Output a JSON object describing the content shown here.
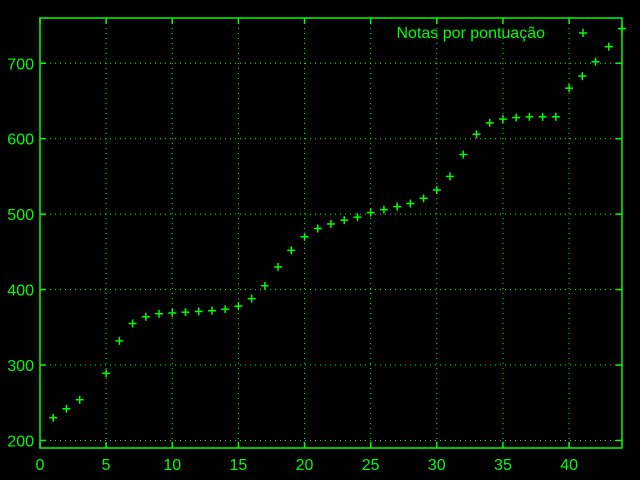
{
  "chart_data": {
    "type": "scatter",
    "title": "",
    "xlabel": "",
    "ylabel": "",
    "xlim": [
      0,
      44
    ],
    "ylim": [
      190,
      760
    ],
    "x_ticks": [
      0,
      5,
      10,
      15,
      20,
      25,
      30,
      35,
      40
    ],
    "y_ticks": [
      200,
      300,
      400,
      500,
      600,
      700
    ],
    "grid": true,
    "legend_position": "top-right",
    "color": "#00ff00",
    "background": "#000000",
    "marker": "plus",
    "series": [
      {
        "name": "Notas por pontuação",
        "points": [
          [
            1,
            230
          ],
          [
            2,
            242
          ],
          [
            3,
            254
          ],
          [
            5,
            289
          ],
          [
            6,
            332
          ],
          [
            7,
            355
          ],
          [
            8,
            364
          ],
          [
            9,
            368
          ],
          [
            10,
            369
          ],
          [
            11,
            370
          ],
          [
            12,
            371
          ],
          [
            13,
            372
          ],
          [
            14,
            374
          ],
          [
            15,
            378
          ],
          [
            16,
            388
          ],
          [
            17,
            405
          ],
          [
            18,
            430
          ],
          [
            19,
            452
          ],
          [
            20,
            470
          ],
          [
            21,
            481
          ],
          [
            22,
            487
          ],
          [
            23,
            492
          ],
          [
            24,
            496
          ],
          [
            25,
            502
          ],
          [
            26,
            506
          ],
          [
            27,
            510
          ],
          [
            28,
            514
          ],
          [
            29,
            521
          ],
          [
            30,
            532
          ],
          [
            31,
            550
          ],
          [
            32,
            579
          ],
          [
            33,
            606
          ],
          [
            34,
            621
          ],
          [
            35,
            626
          ],
          [
            36,
            628
          ],
          [
            37,
            629
          ],
          [
            38,
            629
          ],
          [
            39,
            629
          ],
          [
            40,
            667
          ],
          [
            41,
            683
          ],
          [
            42,
            702
          ],
          [
            43,
            722
          ],
          [
            44,
            746
          ]
        ]
      }
    ]
  }
}
